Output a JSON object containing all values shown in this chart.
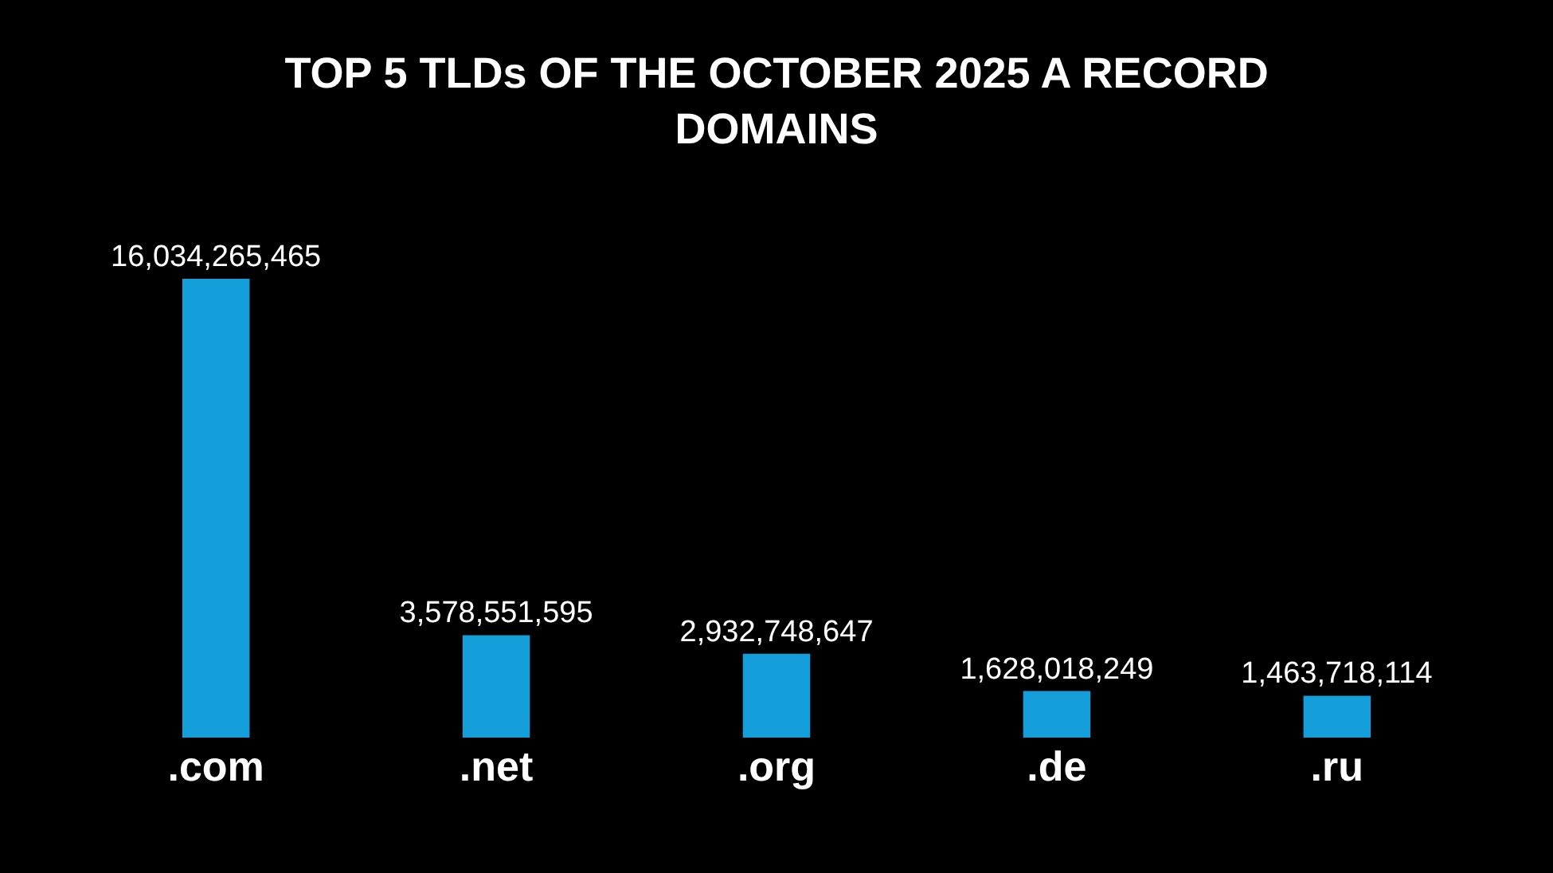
{
  "chart_data": {
    "type": "bar",
    "title": "TOP 5 TLDs OF THE OCTOBER 2025 A RECORD DOMAINS",
    "categories": [
      ".com",
      ".net",
      ".org",
      ".de",
      ".ru"
    ],
    "values": [
      16034265465,
      3578551595,
      2932748647,
      1628018249,
      1463718114
    ],
    "color": "#149fda",
    "value_labels": [
      "16,034,265,465",
      "3,578,551,595",
      "2,932,748,647",
      "1,628,018,249",
      "1,463,718,114"
    ],
    "grid": false,
    "legend": false
  }
}
